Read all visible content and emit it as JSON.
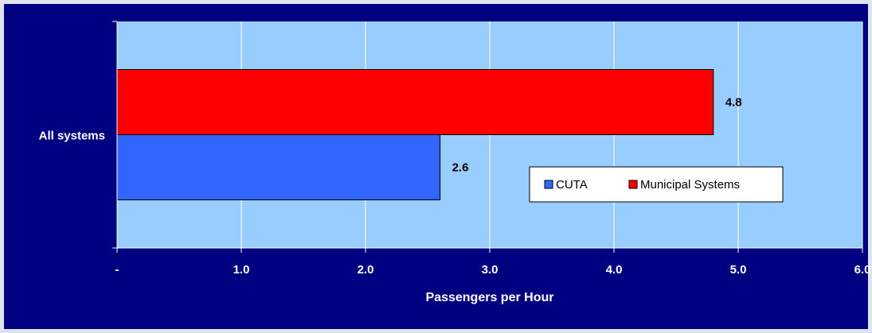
{
  "chart_data": {
    "type": "bar",
    "orientation": "horizontal",
    "categories": [
      "All systems"
    ],
    "series": [
      {
        "name": "CUTA",
        "values": [
          2.6
        ],
        "labels": [
          "2.6"
        ],
        "color": "#3366ff"
      },
      {
        "name": "Municipal Systems",
        "values": [
          4.8
        ],
        "labels": [
          "4.8"
        ],
        "color": "#ff0000"
      }
    ],
    "xlabel": "Passengers per Hour",
    "ylabel": "",
    "xlim": [
      0,
      6
    ],
    "xticks": [
      0,
      1,
      2,
      3,
      4,
      5,
      6
    ],
    "xtick_labels": [
      "-",
      "1.0",
      "2.0",
      "3.0",
      "4.0",
      "5.0",
      "6.0"
    ],
    "grid": true,
    "legend_position": "inside-right",
    "colors": {
      "frame": "#000080",
      "plot_background": "#99ccff",
      "gridline": "#ffffff"
    }
  }
}
